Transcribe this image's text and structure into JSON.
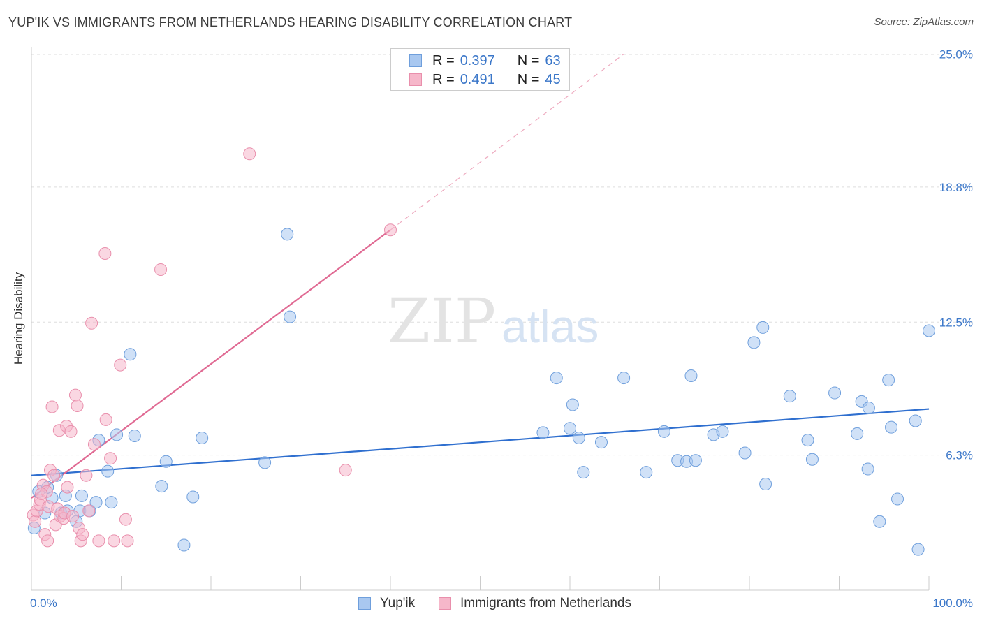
{
  "title": "YUP'IK VS IMMIGRANTS FROM NETHERLANDS HEARING DISABILITY CORRELATION CHART",
  "source": "Source: ZipAtlas.com",
  "watermark": {
    "zip": "ZIP",
    "atlas": "atlas"
  },
  "legend_top": {
    "rows": [
      {
        "r_label": "R =",
        "r_value": "0.397",
        "n_label": "N =",
        "n_value": "63"
      },
      {
        "r_label": "R =",
        "r_value": "0.491",
        "n_label": "N =",
        "n_value": "45"
      }
    ]
  },
  "legend_bottom": [
    "Yup'ik",
    "Immigrants from Netherlands"
  ],
  "chart_data": {
    "type": "scatter",
    "title": "YUP'IK VS IMMIGRANTS FROM NETHERLANDS HEARING DISABILITY CORRELATION CHART",
    "xlabel": "",
    "ylabel": "Hearing Disability",
    "xlim": [
      0,
      100
    ],
    "ylim": [
      0,
      26
    ],
    "x_tick_labels": [
      "0.0%",
      "100.0%"
    ],
    "y_ticks": [
      6.3,
      12.5,
      18.8,
      25.0
    ],
    "y_tick_labels": [
      "6.3%",
      "12.5%",
      "18.8%",
      "25.0%"
    ],
    "grid": "horizontal dashed",
    "legend_position": "top-center",
    "colors": {
      "yupik_fill": "#a9c8f0",
      "yupik_stroke": "#6f9fdc",
      "yupik_line": "#2f6fcf",
      "nl_fill": "#f6b7ca",
      "nl_stroke": "#e98fac",
      "nl_line": "#e06a93",
      "axis_text": "#3b77c9"
    },
    "series": [
      {
        "name": "Yup'ik",
        "r": 0.397,
        "n": 63,
        "trend": {
          "x0": 0,
          "y0": 5.35,
          "x1": 100,
          "y1": 8.45
        },
        "points": [
          [
            0.3,
            2.9
          ],
          [
            0.8,
            4.6
          ],
          [
            1.5,
            3.6
          ],
          [
            1.8,
            4.8
          ],
          [
            2.3,
            4.3
          ],
          [
            2.8,
            5.35
          ],
          [
            3.3,
            3.6
          ],
          [
            3.8,
            4.4
          ],
          [
            4.0,
            3.7
          ],
          [
            5.0,
            3.2
          ],
          [
            5.6,
            4.4
          ],
          [
            5.4,
            3.7
          ],
          [
            6.5,
            3.7
          ],
          [
            7.2,
            4.1
          ],
          [
            7.5,
            7.0
          ],
          [
            8.5,
            5.55
          ],
          [
            8.9,
            4.1
          ],
          [
            9.5,
            7.25
          ],
          [
            11.0,
            11.0
          ],
          [
            11.5,
            7.2
          ],
          [
            14.5,
            4.85
          ],
          [
            15.0,
            6.0
          ],
          [
            17.0,
            2.1
          ],
          [
            18.0,
            4.35
          ],
          [
            19.0,
            7.1
          ],
          [
            26.0,
            5.95
          ],
          [
            28.5,
            16.6
          ],
          [
            28.8,
            12.75
          ],
          [
            57.0,
            7.35
          ],
          [
            58.5,
            9.9
          ],
          [
            60.0,
            7.55
          ],
          [
            60.3,
            8.65
          ],
          [
            61.0,
            7.1
          ],
          [
            61.5,
            5.5
          ],
          [
            63.5,
            6.9
          ],
          [
            66.0,
            9.9
          ],
          [
            68.5,
            5.5
          ],
          [
            70.5,
            7.4
          ],
          [
            72.0,
            6.05
          ],
          [
            73.0,
            6.0
          ],
          [
            73.5,
            10.0
          ],
          [
            74.0,
            6.05
          ],
          [
            76.0,
            7.25
          ],
          [
            77.0,
            7.4
          ],
          [
            79.5,
            6.4
          ],
          [
            80.5,
            11.55
          ],
          [
            81.5,
            12.25
          ],
          [
            81.8,
            4.95
          ],
          [
            84.5,
            9.05
          ],
          [
            86.5,
            7.0
          ],
          [
            87.0,
            6.1
          ],
          [
            89.5,
            9.2
          ],
          [
            92.0,
            7.3
          ],
          [
            92.5,
            8.8
          ],
          [
            93.2,
            5.65
          ],
          [
            93.3,
            8.5
          ],
          [
            94.5,
            3.2
          ],
          [
            95.5,
            9.8
          ],
          [
            95.8,
            7.6
          ],
          [
            96.5,
            4.25
          ],
          [
            98.5,
            7.9
          ],
          [
            98.8,
            1.9
          ],
          [
            100.0,
            12.1
          ]
        ]
      },
      {
        "name": "Immigrants from Netherlands",
        "r": 0.491,
        "n": 45,
        "trend": {
          "x0": 0,
          "y0": 4.3,
          "x1": 40,
          "y1": 16.8,
          "dash_x1": 66,
          "dash_y1": 25.0
        },
        "points": [
          [
            0.2,
            3.5
          ],
          [
            0.4,
            3.2
          ],
          [
            0.6,
            3.7
          ],
          [
            0.9,
            4.0
          ],
          [
            1.0,
            4.2
          ],
          [
            1.3,
            4.9
          ],
          [
            1.5,
            2.6
          ],
          [
            1.7,
            4.6
          ],
          [
            1.8,
            2.3
          ],
          [
            1.9,
            3.9
          ],
          [
            2.1,
            5.6
          ],
          [
            2.3,
            8.55
          ],
          [
            2.5,
            5.35
          ],
          [
            2.7,
            3.05
          ],
          [
            2.9,
            3.8
          ],
          [
            3.1,
            7.45
          ],
          [
            3.2,
            3.45
          ],
          [
            3.6,
            3.35
          ],
          [
            3.7,
            3.6
          ],
          [
            3.9,
            7.65
          ],
          [
            4.0,
            4.8
          ],
          [
            4.4,
            7.4
          ],
          [
            4.6,
            3.45
          ],
          [
            4.9,
            9.1
          ],
          [
            5.1,
            8.6
          ],
          [
            5.3,
            2.9
          ],
          [
            5.5,
            2.3
          ],
          [
            5.7,
            2.6
          ],
          [
            6.1,
            5.35
          ],
          [
            6.4,
            3.7
          ],
          [
            6.7,
            12.45
          ],
          [
            7.0,
            6.8
          ],
          [
            7.5,
            2.3
          ],
          [
            8.2,
            15.7
          ],
          [
            8.3,
            7.95
          ],
          [
            8.8,
            6.15
          ],
          [
            9.2,
            2.3
          ],
          [
            9.9,
            10.5
          ],
          [
            10.5,
            3.3
          ],
          [
            10.7,
            2.3
          ],
          [
            14.4,
            14.95
          ],
          [
            24.3,
            20.35
          ],
          [
            35.0,
            5.6
          ],
          [
            40.0,
            16.8
          ],
          [
            1.1,
            4.5
          ]
        ]
      }
    ]
  }
}
